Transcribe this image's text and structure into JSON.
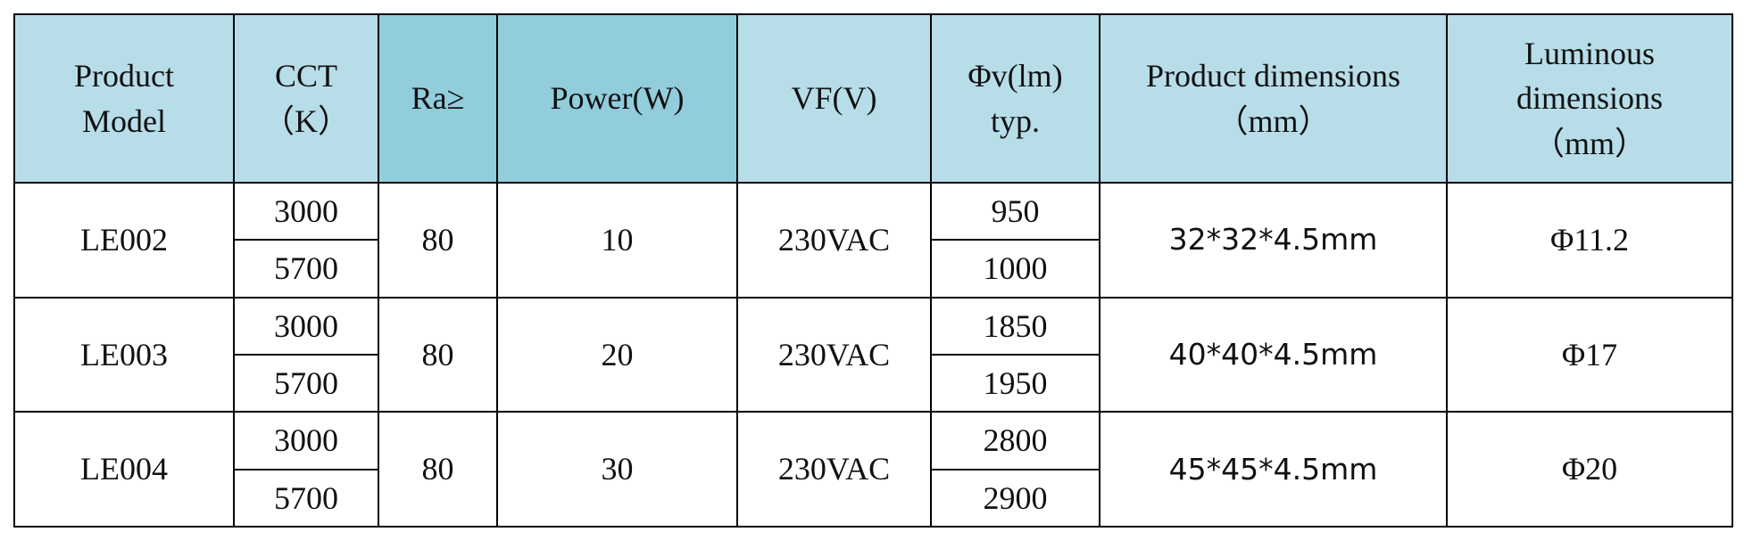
{
  "table": {
    "headers": [
      [
        "Product",
        "Model"
      ],
      [
        "CCT",
        "（K）"
      ],
      [
        "Ra≥"
      ],
      [
        "Power(W)"
      ],
      [
        "VF(V)"
      ],
      [
        "Φv(lm)",
        "typ."
      ],
      [
        "Product dimensions",
        "（mm）"
      ],
      [
        "Luminous",
        "dimensions",
        "（mm）"
      ]
    ],
    "rows": [
      {
        "model": "LE002",
        "cct": [
          3000,
          5700
        ],
        "ra": 80,
        "power": 10,
        "vf": "230VAC",
        "flux": [
          950,
          1000
        ],
        "dims": "32*32*4.5mm",
        "luminous": "Φ11.2"
      },
      {
        "model": "LE003",
        "cct": [
          3000,
          5700
        ],
        "ra": 80,
        "power": 20,
        "vf": "230VAC",
        "flux": [
          1850,
          1950
        ],
        "dims": "40*40*4.5mm",
        "luminous": "Φ17"
      },
      {
        "model": "LE004",
        "cct": [
          3000,
          5700
        ],
        "ra": 80,
        "power": 30,
        "vf": "230VAC",
        "flux": [
          2800,
          2900
        ],
        "dims": "45*45*4.5mm",
        "luminous": "Φ20"
      }
    ]
  }
}
